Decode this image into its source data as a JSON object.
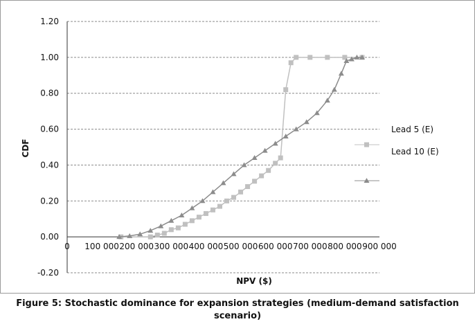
{
  "chart_data": {
    "type": "line",
    "title": "",
    "xlabel": "NPV ($)",
    "ylabel": "CDF",
    "xlim": [
      0,
      900000
    ],
    "ylim": [
      -0.2,
      1.2
    ],
    "x_tick_labels": [
      "0",
      "100 000",
      "200 000",
      "300 000",
      "400 000",
      "500 000",
      "600 000",
      "700 000",
      "800 000",
      "900 000"
    ],
    "x_tick_values": [
      0,
      100000,
      200000,
      300000,
      400000,
      500000,
      600000,
      700000,
      800000,
      900000
    ],
    "y_tick_labels": [
      "-0.20",
      "0.00",
      "0.20",
      "0.40",
      "0.60",
      "0.80",
      "1.00",
      "1.20"
    ],
    "y_tick_values": [
      -0.2,
      0.0,
      0.2,
      0.4,
      0.6,
      0.8,
      1.0,
      1.2
    ],
    "grid": "horizontal",
    "legend_position": "right",
    "series": [
      {
        "name": "Lead 5 (E)",
        "color": "#c0c0c0",
        "marker": "square",
        "points": [
          [
            155000,
            0.0
          ],
          [
            240000,
            0.0
          ],
          [
            260000,
            0.01
          ],
          [
            280000,
            0.02
          ],
          [
            300000,
            0.04
          ],
          [
            320000,
            0.05
          ],
          [
            340000,
            0.07
          ],
          [
            360000,
            0.09
          ],
          [
            380000,
            0.11
          ],
          [
            400000,
            0.13
          ],
          [
            420000,
            0.15
          ],
          [
            440000,
            0.17
          ],
          [
            460000,
            0.2
          ],
          [
            480000,
            0.22
          ],
          [
            500000,
            0.25
          ],
          [
            520000,
            0.28
          ],
          [
            540000,
            0.31
          ],
          [
            560000,
            0.34
          ],
          [
            580000,
            0.37
          ],
          [
            600000,
            0.41
          ],
          [
            615000,
            0.44
          ],
          [
            630000,
            0.82
          ],
          [
            645000,
            0.97
          ],
          [
            660000,
            1.0
          ],
          [
            700000,
            1.0
          ],
          [
            750000,
            1.0
          ],
          [
            800000,
            1.0
          ],
          [
            850000,
            1.0
          ]
        ]
      },
      {
        "name": "Lead 10 (E)",
        "color": "#8c8c8c",
        "marker": "triangle",
        "points": [
          [
            150000,
            0.0
          ],
          [
            180000,
            0.005
          ],
          [
            210000,
            0.015
          ],
          [
            240000,
            0.035
          ],
          [
            270000,
            0.06
          ],
          [
            300000,
            0.09
          ],
          [
            330000,
            0.12
          ],
          [
            360000,
            0.16
          ],
          [
            390000,
            0.2
          ],
          [
            420000,
            0.25
          ],
          [
            450000,
            0.3
          ],
          [
            480000,
            0.35
          ],
          [
            510000,
            0.4
          ],
          [
            540000,
            0.44
          ],
          [
            570000,
            0.48
          ],
          [
            600000,
            0.52
          ],
          [
            630000,
            0.56
          ],
          [
            660000,
            0.6
          ],
          [
            690000,
            0.64
          ],
          [
            720000,
            0.69
          ],
          [
            750000,
            0.76
          ],
          [
            770000,
            0.82
          ],
          [
            790000,
            0.91
          ],
          [
            805000,
            0.98
          ],
          [
            820000,
            0.99
          ],
          [
            835000,
            1.0
          ],
          [
            850000,
            1.0
          ]
        ]
      }
    ]
  },
  "legend": {
    "series_1_label": "Lead 5 (E)",
    "series_2_label": "Lead 10 (E)"
  },
  "caption": {
    "line1": "Figure 5: Stochastic dominance for expansion strategies (medium-demand satisfaction",
    "line2": "scenario)"
  }
}
